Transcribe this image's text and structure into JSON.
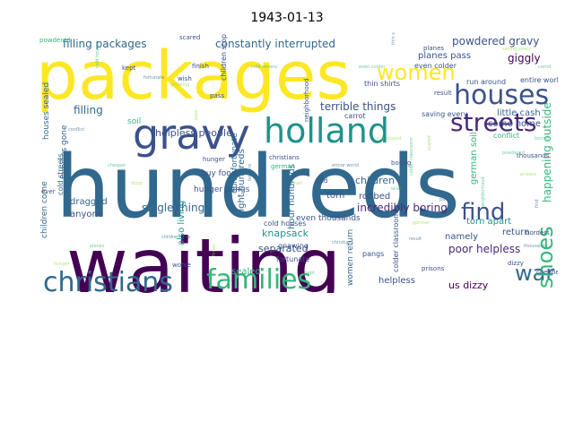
{
  "title": "1943-01-13",
  "palette": {
    "purple": "#440154",
    "indigo": "#3b528b",
    "blue": "#31688e",
    "teal": "#21918c",
    "green": "#35b779",
    "lime": "#90d743",
    "yellow": "#fde725",
    "deep": "#482878"
  },
  "words": [
    {
      "text": "packages",
      "color": "#fde725"
    },
    {
      "text": "hundreds",
      "color": "#31688e"
    },
    {
      "text": "waiting",
      "color": "#440154"
    },
    {
      "text": "gravy",
      "color": "#3b528b"
    },
    {
      "text": "holland",
      "color": "#21918c"
    },
    {
      "text": "houses",
      "color": "#3b528b"
    },
    {
      "text": "streets",
      "color": "#482878"
    },
    {
      "text": "women",
      "color": "#fde725"
    },
    {
      "text": "christians",
      "color": "#31688e"
    },
    {
      "text": "families",
      "color": "#35b779"
    },
    {
      "text": "find",
      "color": "#3b528b"
    },
    {
      "text": "war",
      "color": "#31688e"
    },
    {
      "text": "shoes",
      "color": "#35b779"
    },
    {
      "text": "filling packages",
      "color": "#31688e"
    },
    {
      "text": "constantly interrupted",
      "color": "#31688e"
    },
    {
      "text": "powdered gravy",
      "color": "#3b528b"
    },
    {
      "text": "giggly",
      "color": "#440154"
    },
    {
      "text": "planes pass",
      "color": "#3b528b"
    },
    {
      "text": "terrible things",
      "color": "#3b528b"
    },
    {
      "text": "filling",
      "color": "#31688e"
    },
    {
      "text": "helpless people",
      "color": "#3b528b"
    },
    {
      "text": "little cash",
      "color": "#31688e"
    },
    {
      "text": "come home",
      "color": "#3b528b"
    },
    {
      "text": "happening outside",
      "color": "#35b779"
    },
    {
      "text": "single thing",
      "color": "#31688e"
    },
    {
      "text": "incredibly boring",
      "color": "#482878"
    },
    {
      "text": "dragged",
      "color": "#31688e"
    },
    {
      "text": "anyone",
      "color": "#3b528b"
    },
    {
      "text": "knapsack",
      "color": "#21918c"
    },
    {
      "text": "separated",
      "color": "#3b528b"
    },
    {
      "text": "sealed",
      "color": "#35b779"
    },
    {
      "text": "namely",
      "color": "#3b528b"
    },
    {
      "text": "poor helpless",
      "color": "#482878"
    },
    {
      "text": "torn apart",
      "color": "#21918c"
    },
    {
      "text": "return",
      "color": "#3b528b"
    },
    {
      "text": "robbed",
      "color": "#3b528b"
    },
    {
      "text": "children",
      "color": "#31688e"
    },
    {
      "text": "helpless",
      "color": "#3b528b"
    },
    {
      "text": "us dizzy",
      "color": "#440154"
    },
    {
      "text": "torn",
      "color": "#3b528b"
    },
    {
      "text": "night hundreds",
      "color": "#31688e"
    },
    {
      "text": "hour hundreds",
      "color": "#31688e"
    },
    {
      "text": "also living",
      "color": "#21918c"
    },
    {
      "text": "buy food",
      "color": "#3b528b"
    },
    {
      "text": "hunger pangs",
      "color": "#3b528b"
    },
    {
      "text": "quite fortunate",
      "color": "#31688e"
    },
    {
      "text": "even thousands",
      "color": "#3b528b"
    },
    {
      "text": "cold houses",
      "color": "#3b528b"
    },
    {
      "text": "fortunate",
      "color": "#3b528b"
    },
    {
      "text": "gnawing",
      "color": "#3b528b"
    },
    {
      "text": "women return",
      "color": "#31688e"
    },
    {
      "text": "even colder",
      "color": "#3b528b"
    },
    {
      "text": "thin shirts",
      "color": "#3b528b"
    },
    {
      "text": "saving every",
      "color": "#3b528b"
    },
    {
      "text": "carrot",
      "color": "#3b528b"
    },
    {
      "text": "conflict",
      "color": "#35b779"
    },
    {
      "text": "german soil",
      "color": "#35b779"
    },
    {
      "text": "pass",
      "color": "#3b528b"
    },
    {
      "text": "soil",
      "color": "#35b779"
    },
    {
      "text": "children come",
      "color": "#31688e"
    },
    {
      "text": "families gone",
      "color": "#31688e"
    },
    {
      "text": "houses sealed",
      "color": "#31688e"
    },
    {
      "text": "cold streets",
      "color": "#31688e"
    },
    {
      "text": "entire world",
      "color": "#3b528b"
    },
    {
      "text": "run around",
      "color": "#3b528b"
    },
    {
      "text": "colder classroom",
      "color": "#3b528b"
    },
    {
      "text": "pangs",
      "color": "#3b528b"
    },
    {
      "text": "prisons",
      "color": "#3b528b"
    },
    {
      "text": "boring",
      "color": "#3b528b"
    },
    {
      "text": "find",
      "color": "#3b528b"
    },
    {
      "text": "hunger",
      "color": "#3b528b"
    },
    {
      "text": "planes",
      "color": "#3b528b"
    },
    {
      "text": "children stop",
      "color": "#3b528b"
    },
    {
      "text": "finish",
      "color": "#3b528b"
    },
    {
      "text": "kept",
      "color": "#3b528b"
    },
    {
      "text": "christians",
      "color": "#3b528b"
    },
    {
      "text": "german",
      "color": "#35b779"
    },
    {
      "text": "neighborhood",
      "color": "#3b528b"
    },
    {
      "text": "thousands",
      "color": "#3b528b"
    },
    {
      "text": "dizzy",
      "color": "#3b528b"
    },
    {
      "text": "cheaper",
      "color": "#3b528b"
    },
    {
      "text": "borders",
      "color": "#3b528b"
    },
    {
      "text": "ever",
      "color": "#3b528b"
    },
    {
      "text": "wish",
      "color": "#3b528b"
    },
    {
      "text": "result",
      "color": "#3b528b"
    },
    {
      "text": "scared",
      "color": "#3b528b"
    },
    {
      "text": "powdered",
      "color": "#35b779"
    },
    {
      "text": "worse",
      "color": "#3b528b"
    }
  ]
}
